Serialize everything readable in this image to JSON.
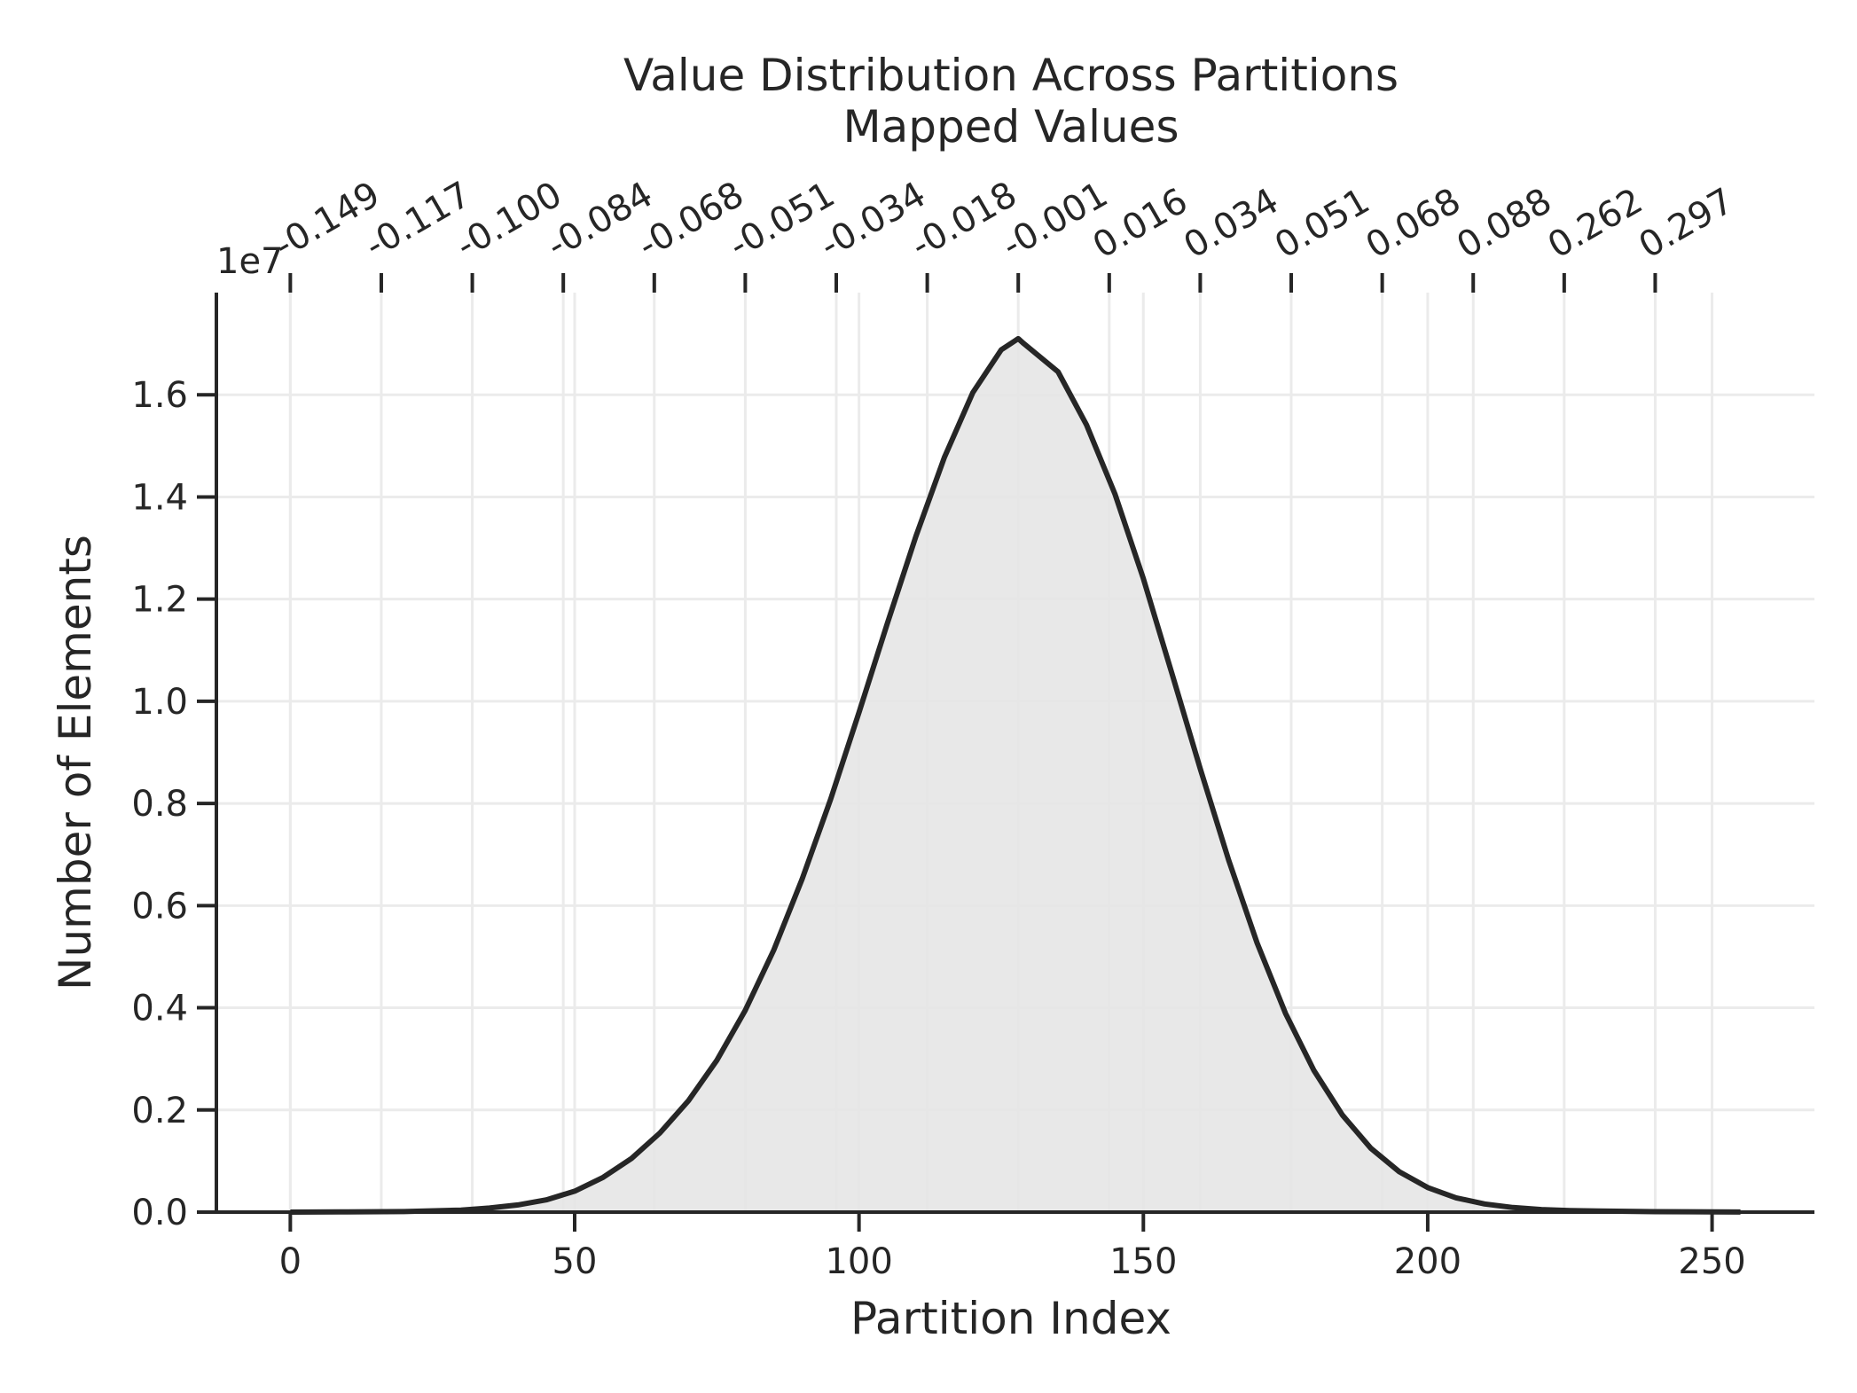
{
  "colors": {
    "background": "#ffffff",
    "curve": "#262626",
    "fill": "#e5e5e5",
    "grid": "#ebebeb",
    "axis": "#262626",
    "text": "#262626"
  },
  "chart_data": {
    "type": "area",
    "title": "Value Distribution Across Partitions",
    "top_axis_label": "Mapped Values",
    "xlabel": "Partition Index",
    "ylabel": "Number of Elements",
    "y_scale_label": "1e7",
    "xlim": [
      -13,
      268
    ],
    "ylim": [
      0,
      1.8
    ],
    "x_ticks": [
      0,
      50,
      100,
      150,
      200,
      250
    ],
    "x_tick_labels": [
      "0",
      "50",
      "100",
      "150",
      "200",
      "250"
    ],
    "y_ticks": [
      0.0,
      0.2,
      0.4,
      0.6,
      0.8,
      1.0,
      1.2,
      1.4,
      1.6
    ],
    "y_tick_labels": [
      "0.0",
      "0.2",
      "0.4",
      "0.6",
      "0.8",
      "1.0",
      "1.2",
      "1.4",
      "1.6"
    ],
    "top_ticks": [
      0,
      16,
      32,
      48,
      64,
      80,
      96,
      112,
      128,
      144,
      160,
      176,
      192,
      208,
      224,
      240
    ],
    "top_tick_labels": [
      "-0.149",
      "-0.117",
      "-0.100",
      "-0.084",
      "-0.068",
      "-0.051",
      "-0.034",
      "-0.018",
      "-0.001",
      "0.016",
      "0.034",
      "0.051",
      "0.068",
      "0.088",
      "0.262",
      "0.297"
    ],
    "grid": true,
    "series": [
      {
        "x": [
          0,
          10,
          20,
          30,
          35,
          40,
          45,
          50,
          55,
          60,
          65,
          70,
          75,
          80,
          85,
          90,
          95,
          100,
          105,
          110,
          115,
          120,
          125,
          128,
          129,
          135,
          140,
          145,
          150,
          155,
          160,
          165,
          170,
          175,
          180,
          185,
          190,
          195,
          200,
          205,
          210,
          215,
          220,
          225,
          230,
          240,
          250,
          255
        ],
        "y": [
          0.0,
          0.0005,
          0.001,
          0.004,
          0.008,
          0.014,
          0.024,
          0.041,
          0.068,
          0.105,
          0.155,
          0.218,
          0.297,
          0.395,
          0.513,
          0.652,
          0.808,
          0.978,
          1.153,
          1.323,
          1.477,
          1.604,
          1.688,
          1.71,
          1.7,
          1.645,
          1.541,
          1.406,
          1.24,
          1.055,
          0.868,
          0.689,
          0.527,
          0.389,
          0.277,
          0.19,
          0.125,
          0.079,
          0.048,
          0.028,
          0.016,
          0.009,
          0.005,
          0.003,
          0.002,
          0.0008,
          0.0003,
          0.0002
        ]
      }
    ]
  }
}
